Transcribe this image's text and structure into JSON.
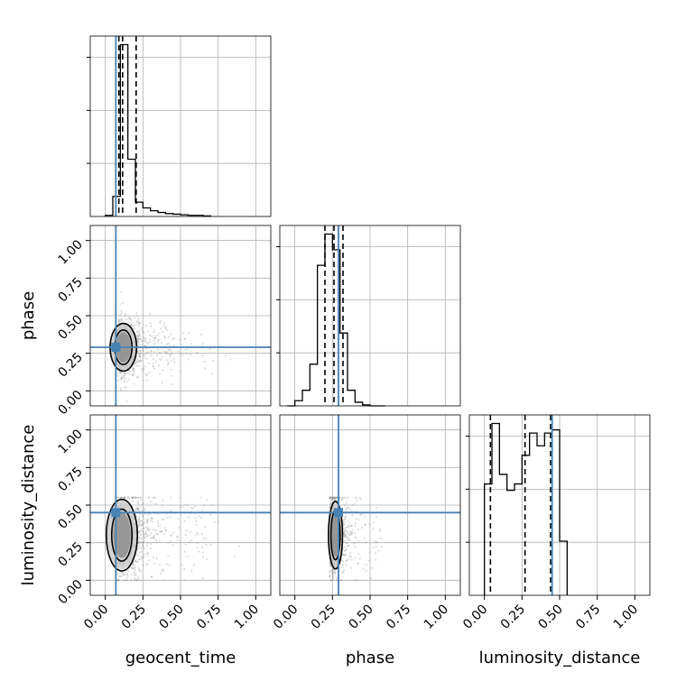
{
  "chart_data": {
    "type": "corner",
    "parameters": [
      "geocent_time",
      "phase",
      "luminosity_distance"
    ],
    "axis_range": [
      -0.1,
      1.1
    ],
    "ticks": [
      0.0,
      0.25,
      0.5,
      0.75,
      1.0
    ],
    "tick_labels": [
      "0.00",
      "0.25",
      "0.50",
      "0.75",
      "1.00"
    ],
    "grid": true,
    "colors": {
      "truth": "#4682b4",
      "hist": "#000000",
      "points": "#808080"
    },
    "truths": {
      "geocent_time": 0.07,
      "phase": 0.29,
      "luminosity_distance": 0.45
    },
    "quantiles": {
      "geocent_time": [
        0.09,
        0.115,
        0.205
      ],
      "phase": [
        0.2,
        0.26,
        0.32
      ],
      "luminosity_distance": [
        0.04,
        0.27,
        0.44
      ]
    },
    "histograms": {
      "geocent_time": {
        "edges": [
          0.0,
          0.05,
          0.1,
          0.15,
          0.2,
          0.25,
          0.3,
          0.35,
          0.4,
          0.45,
          0.5,
          0.55,
          0.6,
          0.65,
          0.7
        ],
        "counts": [
          0.02,
          0.35,
          3.0,
          1.0,
          0.25,
          0.15,
          0.1,
          0.07,
          0.05,
          0.04,
          0.03,
          0.02,
          0.02,
          0.01
        ]
      },
      "phase": {
        "edges": [
          -0.05,
          0.0,
          0.05,
          0.1,
          0.15,
          0.2,
          0.25,
          0.3,
          0.35,
          0.4,
          0.45,
          0.5,
          0.55,
          0.6
        ],
        "counts": [
          0.0,
          0.1,
          0.3,
          0.8,
          2.7,
          3.3,
          3.0,
          1.4,
          0.3,
          0.07,
          0.02,
          0.0,
          0.0
        ]
      },
      "luminosity_distance": {
        "edges": [
          0.0,
          0.05,
          0.1,
          0.15,
          0.2,
          0.25,
          0.3,
          0.35,
          0.4,
          0.45,
          0.5,
          0.55
        ],
        "counts": [
          1.75,
          2.7,
          1.9,
          1.65,
          1.75,
          2.2,
          2.55,
          2.35,
          2.55,
          2.6,
          0.85
        ]
      }
    },
    "pairs": [
      {
        "x": "geocent_time",
        "y": "phase",
        "center": [
          0.12,
          0.29
        ],
        "spread": [
          0.17,
          0.12
        ],
        "skew": 0.1
      },
      {
        "x": "geocent_time",
        "y": "luminosity_distance",
        "center": [
          0.11,
          0.3
        ],
        "spread": [
          0.2,
          0.18
        ],
        "skew": 0.0
      },
      {
        "x": "phase",
        "y": "luminosity_distance",
        "center": [
          0.27,
          0.3
        ],
        "spread": [
          0.09,
          0.17
        ],
        "skew": 0.0
      }
    ]
  }
}
